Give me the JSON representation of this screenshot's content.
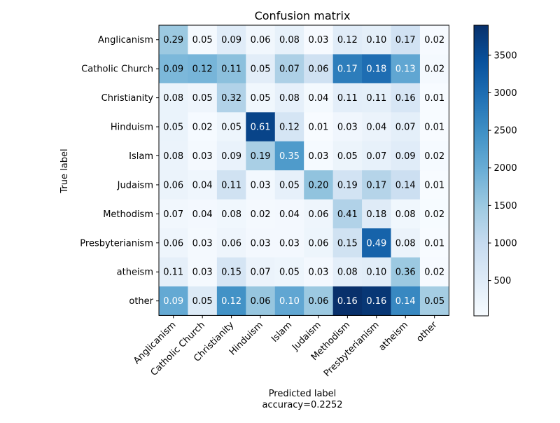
{
  "chart_data": {
    "type": "heatmap",
    "title": "Confusion matrix",
    "xlabel": "Predicted label",
    "xlabel_note": "accuracy=0.2252",
    "ylabel": "True label",
    "row_labels": [
      "Anglicanism",
      "Catholic Church",
      "Christianity",
      "Hinduism",
      "Islam",
      "Judaism",
      "Methodism",
      "Presbyterianism",
      "atheism",
      "other"
    ],
    "col_labels": [
      "Anglicanism",
      "Catholic Church",
      "Christianity",
      "Hinduism",
      "Islam",
      "Judaism",
      "Methodism",
      "Presbyterianism",
      "atheism",
      "other"
    ],
    "cell_text": [
      [
        "0.29",
        "0.05",
        "0.09",
        "0.06",
        "0.08",
        "0.03",
        "0.12",
        "0.10",
        "0.17",
        "0.02"
      ],
      [
        "0.09",
        "0.12",
        "0.11",
        "0.05",
        "0.07",
        "0.06",
        "0.17",
        "0.18",
        "0.13",
        "0.02"
      ],
      [
        "0.08",
        "0.05",
        "0.32",
        "0.05",
        "0.08",
        "0.04",
        "0.11",
        "0.11",
        "0.16",
        "0.01"
      ],
      [
        "0.05",
        "0.02",
        "0.05",
        "0.61",
        "0.12",
        "0.01",
        "0.03",
        "0.04",
        "0.07",
        "0.01"
      ],
      [
        "0.08",
        "0.03",
        "0.09",
        "0.19",
        "0.35",
        "0.03",
        "0.05",
        "0.07",
        "0.09",
        "0.02"
      ],
      [
        "0.06",
        "0.04",
        "0.11",
        "0.03",
        "0.05",
        "0.20",
        "0.19",
        "0.17",
        "0.14",
        "0.01"
      ],
      [
        "0.07",
        "0.04",
        "0.08",
        "0.02",
        "0.04",
        "0.06",
        "0.41",
        "0.18",
        "0.08",
        "0.02"
      ],
      [
        "0.06",
        "0.03",
        "0.06",
        "0.03",
        "0.03",
        "0.06",
        "0.15",
        "0.49",
        "0.08",
        "0.01"
      ],
      [
        "0.11",
        "0.03",
        "0.15",
        "0.07",
        "0.05",
        "0.03",
        "0.08",
        "0.10",
        "0.36",
        "0.02"
      ],
      [
        "0.09",
        "0.05",
        "0.12",
        "0.06",
        "0.10",
        "0.06",
        "0.16",
        "0.16",
        "0.14",
        "0.05"
      ]
    ],
    "cell_counts": [
      [
        1500,
        80,
        480,
        150,
        340,
        50,
        470,
        400,
        780,
        50
      ],
      [
        1800,
        1850,
        1650,
        440,
        1300,
        810,
        2750,
        3000,
        2100,
        90
      ],
      [
        280,
        200,
        1250,
        160,
        350,
        100,
        420,
        400,
        650,
        30
      ],
      [
        280,
        60,
        220,
        3600,
        700,
        30,
        170,
        260,
        400,
        20
      ],
      [
        260,
        90,
        300,
        1350,
        2300,
        60,
        250,
        330,
        480,
        60
      ],
      [
        260,
        180,
        800,
        120,
        350,
        1600,
        750,
        1200,
        880,
        30
      ],
      [
        150,
        110,
        160,
        80,
        110,
        200,
        1250,
        500,
        160,
        40
      ],
      [
        200,
        80,
        200,
        110,
        110,
        220,
        800,
        3150,
        270,
        30
      ],
      [
        380,
        90,
        700,
        270,
        220,
        110,
        420,
        450,
        1500,
        50
      ],
      [
        2050,
        550,
        2450,
        1550,
        2100,
        1500,
        3900,
        3800,
        2600,
        1400
      ]
    ],
    "colorbar": {
      "min": 30,
      "max": 3900,
      "ticks": [
        500,
        1000,
        1500,
        2000,
        2500,
        3000,
        3500
      ],
      "colormap": "Blues"
    }
  }
}
